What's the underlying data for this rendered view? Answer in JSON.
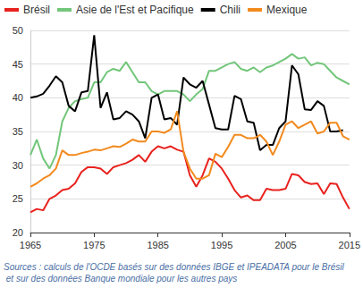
{
  "chart_data": {
    "type": "line",
    "x": [
      1965,
      1966,
      1967,
      1968,
      1969,
      1970,
      1971,
      1972,
      1973,
      1974,
      1975,
      1976,
      1977,
      1978,
      1979,
      1980,
      1981,
      1982,
      1983,
      1984,
      1985,
      1986,
      1987,
      1988,
      1989,
      1990,
      1991,
      1992,
      1993,
      1994,
      1995,
      1996,
      1997,
      1998,
      1999,
      2000,
      2001,
      2002,
      2003,
      2004,
      2005,
      2006,
      2007,
      2008,
      2009,
      2010,
      2011,
      2012,
      2013,
      2014,
      2015
    ],
    "series": [
      {
        "name": "Brésil",
        "color": "#e8221e",
        "values": [
          23,
          23.5,
          23.3,
          25,
          25.5,
          26.3,
          26.5,
          27.3,
          29,
          29.7,
          29.7,
          29.5,
          28.7,
          29.7,
          30,
          30.3,
          30.8,
          31.5,
          30.5,
          32,
          32.8,
          32.5,
          32.8,
          32.3,
          32,
          28.5,
          26.8,
          28.5,
          31,
          30.5,
          29.5,
          28,
          26.3,
          25.2,
          25.5,
          24.8,
          24.8,
          26.5,
          26.3,
          26.3,
          26.5,
          28.7,
          28.5,
          27.5,
          27.2,
          27.3,
          25.7,
          27.3,
          27.2,
          25.2,
          23.5
        ]
      },
      {
        "name": "Asie de l'Est et Pacifique",
        "color": "#72c67a",
        "values": [
          31.5,
          33.8,
          31,
          29.5,
          31.5,
          36.5,
          38.5,
          39.5,
          39.8,
          40,
          42.3,
          42.3,
          43.8,
          44.3,
          44,
          45.3,
          43.8,
          42.3,
          42.3,
          41,
          40.5,
          41,
          41,
          41,
          40.5,
          39.5,
          40.5,
          41.3,
          44,
          44,
          44.5,
          45,
          45.3,
          44.3,
          44,
          44.5,
          43.8,
          44.5,
          44.8,
          45.3,
          45.8,
          46.5,
          45.8,
          46,
          44.8,
          45.2,
          45,
          44,
          43,
          42.5,
          42
        ]
      },
      {
        "name": "Chili",
        "color": "#000000",
        "values": [
          40,
          40.2,
          40.6,
          41.8,
          43.2,
          42.3,
          38.8,
          38,
          40.8,
          41,
          49.3,
          38.5,
          40.8,
          36.8,
          37,
          38,
          37.5,
          36.5,
          34,
          40,
          40.5,
          36.8,
          37,
          36,
          43,
          42,
          41.5,
          42.5,
          39,
          35.5,
          35.3,
          35.3,
          40.3,
          39.8,
          36.5,
          36.3,
          32.2,
          33,
          33,
          35.5,
          36.5,
          44.8,
          43.5,
          38.3,
          38.2,
          39.5,
          38.8,
          35,
          35,
          35.2,
          null
        ]
      },
      {
        "name": "Mexique",
        "color": "#f28a1e",
        "values": [
          26.8,
          27.3,
          28,
          28.5,
          29.5,
          32.2,
          31.5,
          31.5,
          31.8,
          32,
          32.3,
          32.2,
          32.5,
          32.8,
          32.7,
          33.2,
          33.8,
          33.5,
          33.5,
          35,
          35,
          34.8,
          35.3,
          38,
          32,
          29.5,
          28,
          28,
          28.5,
          31.7,
          31.2,
          32.7,
          34.5,
          34.5,
          34,
          34,
          34.5,
          33.5,
          31.5,
          33.5,
          36,
          36.5,
          35.5,
          36,
          36.5,
          34.7,
          35,
          36.3,
          36.3,
          34.3,
          33.8
        ]
      }
    ],
    "xlim": [
      1965,
      2015
    ],
    "xticks": [
      1965,
      1975,
      1985,
      1995,
      2005,
      2015
    ],
    "ylim": [
      20,
      50
    ],
    "yticks": [
      20,
      25,
      30,
      35,
      40,
      45,
      50
    ],
    "grid": true,
    "legend": "top",
    "source": "Sources : calculs de l'OCDE basés sur des données IBGE et IPEADATA pour le Brésil et sur des données Banque mondiale pour les autres pays"
  }
}
